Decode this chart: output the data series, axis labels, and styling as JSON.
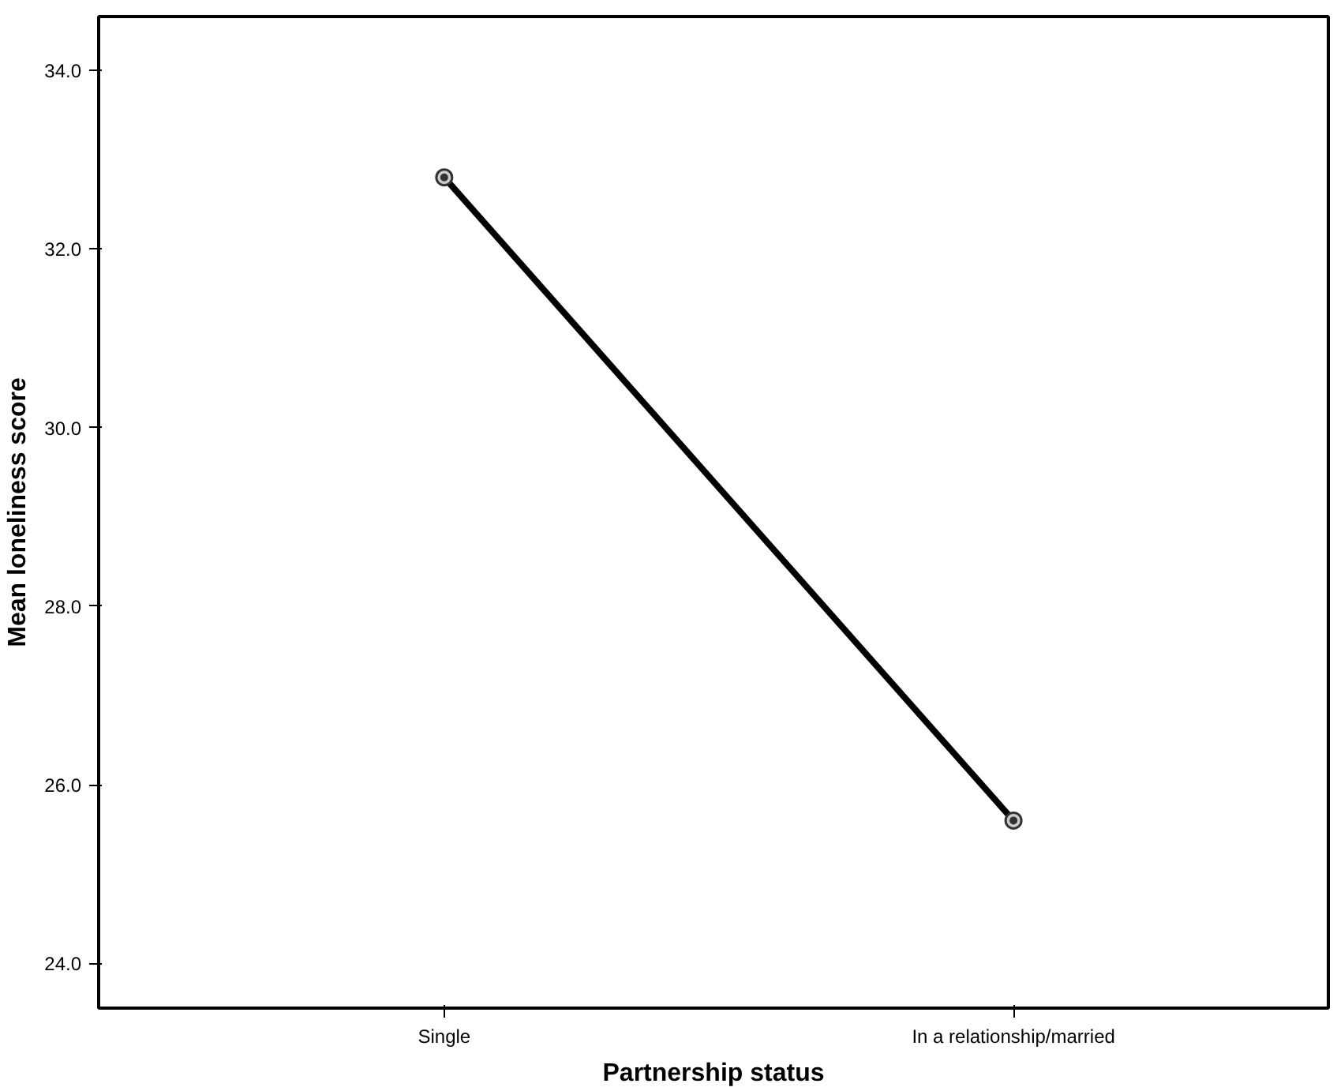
{
  "chart_data": {
    "type": "line",
    "xlabel": "Partnership status",
    "ylabel": "Mean loneliness score",
    "categories": [
      "Single",
      "In a relationship/married"
    ],
    "series": [
      {
        "color": "#000000",
        "values": [
          32.8,
          25.6
        ]
      }
    ],
    "ylim": [
      23.5,
      34.6
    ],
    "yticks": [
      {
        "value": 24,
        "label": "24.0"
      },
      {
        "value": 26,
        "label": "26.0"
      },
      {
        "value": 28,
        "label": "28.0"
      },
      {
        "value": 30,
        "label": "30.0"
      },
      {
        "value": 32,
        "label": "32.0"
      },
      {
        "value": 34,
        "label": "34.0"
      }
    ],
    "grid": false,
    "marker": "circle",
    "line_style": "solid"
  }
}
